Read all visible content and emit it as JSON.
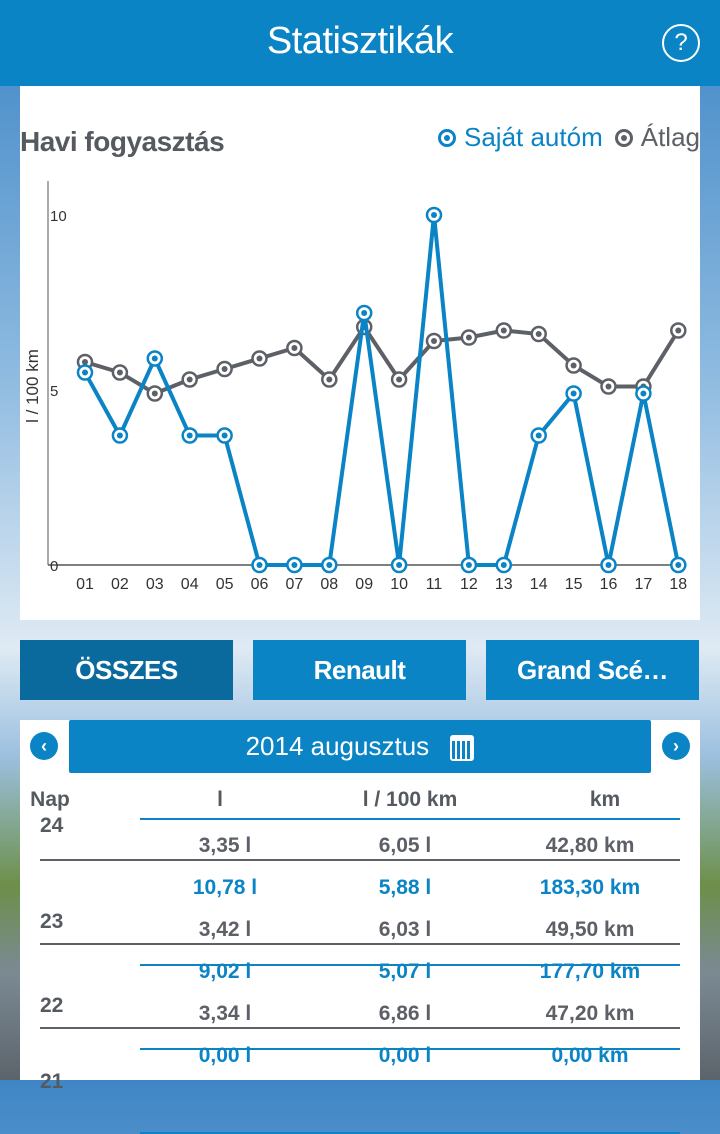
{
  "header": {
    "title": "Statisztikák",
    "help_icon": "question-circle-icon"
  },
  "colors": {
    "own": "#0b84c6",
    "avg": "#5d6167",
    "header": "#0b84c6",
    "active_button": "#0a6a9e"
  },
  "chart_data": {
    "type": "line",
    "title": "Havi fogyasztás",
    "ylabel": "l / 100 km",
    "xlabel": "",
    "categories": [
      "01",
      "02",
      "03",
      "04",
      "05",
      "06",
      "07",
      "08",
      "09",
      "10",
      "11",
      "12",
      "13",
      "14",
      "15",
      "16",
      "17",
      "18"
    ],
    "yticks": [
      "0",
      "5",
      "10"
    ],
    "ylim": [
      0,
      11
    ],
    "legend": "top-right",
    "series": [
      {
        "name": "Saját autóm",
        "color": "#0b84c6",
        "values": [
          5.5,
          3.7,
          5.9,
          3.7,
          3.7,
          0,
          0,
          0,
          7.2,
          0,
          10,
          0,
          0,
          3.7,
          4.9,
          0,
          4.9,
          0
        ]
      },
      {
        "name": "Átlag",
        "color": "#5d6167",
        "values": [
          5.8,
          5.5,
          4.9,
          5.3,
          5.6,
          5.9,
          6.2,
          5.3,
          6.8,
          5.3,
          6.4,
          6.5,
          6.7,
          6.6,
          5.7,
          5.1,
          5.1,
          6.7
        ]
      }
    ]
  },
  "buttons": [
    {
      "label": "ÖSSZES",
      "active": true
    },
    {
      "label": "Renault"
    },
    {
      "label": "Grand Scé…"
    }
  ],
  "table": {
    "month": "2014 augusztus",
    "headers": [
      "Nap",
      "l",
      "l / 100 km",
      "km"
    ],
    "rows": [
      {
        "day": "24",
        "own": null,
        "avg": [
          "3,35 l",
          "6,05 l",
          "42,80 km"
        ]
      },
      {
        "day": "23",
        "own": [
          "10,78 l",
          "5,88 l",
          "183,30 km"
        ],
        "avg": [
          "3,42 l",
          "6,03 l",
          "49,50 km"
        ]
      },
      {
        "day": "22",
        "own": [
          "9,02 l",
          "5,07 l",
          "177,70 km"
        ],
        "avg": [
          "3,34 l",
          "6,86 l",
          "47,20 km"
        ]
      },
      {
        "day": "21",
        "own": [
          "0,00 l",
          "0,00 l",
          "0,00 km"
        ],
        "avg": null
      }
    ]
  }
}
